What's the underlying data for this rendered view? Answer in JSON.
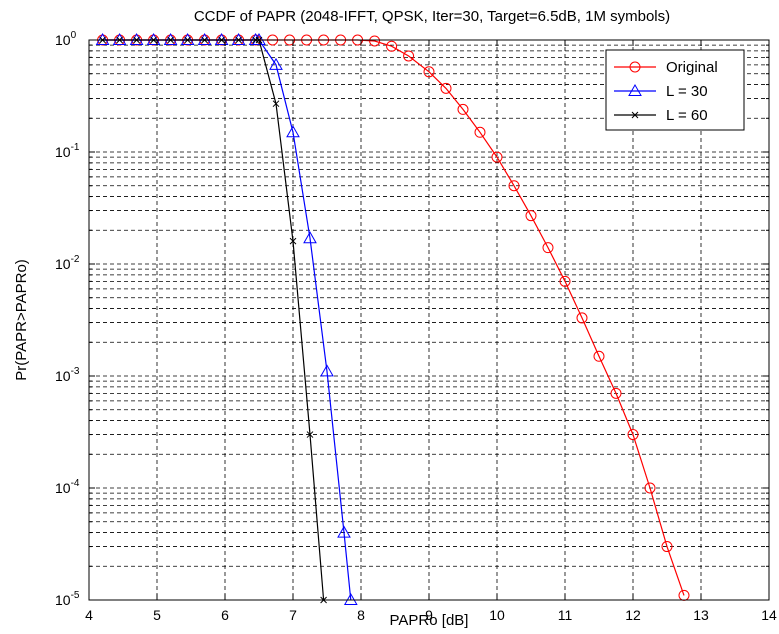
{
  "chart_data": {
    "type": "line",
    "title": "CCDF of PAPR (2048-IFFT, QPSK, Iter=30, Target=6.5dB, 1M symbols)",
    "xlabel": "PAPRo [dB]",
    "ylabel": "Pr(PAPR>PAPRo)",
    "xlim": [
      4,
      14
    ],
    "ylim": [
      1e-05,
      1
    ],
    "yscale": "log",
    "grid": true,
    "x_ticks": [
      "4",
      "5",
      "6",
      "7",
      "8",
      "9",
      "10",
      "11",
      "12",
      "13",
      "14"
    ],
    "y_ticks": [
      {
        "base": "10",
        "exp": "-5"
      },
      {
        "base": "10",
        "exp": "-4"
      },
      {
        "base": "10",
        "exp": "-3"
      },
      {
        "base": "10",
        "exp": "-2"
      },
      {
        "base": "10",
        "exp": "-1"
      },
      {
        "base": "10",
        "exp": "0"
      }
    ],
    "legend_position": "top-right",
    "series": [
      {
        "name": "Original",
        "color": "#ff0000",
        "marker": "circle",
        "x": [
          4.2,
          4.45,
          4.7,
          4.95,
          5.2,
          5.45,
          5.7,
          5.95,
          6.2,
          6.45,
          6.7,
          6.95,
          7.2,
          7.45,
          7.7,
          7.95,
          8.2,
          8.45,
          8.7,
          9.0,
          9.25,
          9.5,
          9.75,
          10.0,
          10.25,
          10.5,
          10.75,
          11.0,
          11.25,
          11.5,
          11.75,
          12.0,
          12.25,
          12.5,
          12.75
        ],
        "y": [
          1,
          1,
          1,
          1,
          1,
          1,
          1,
          1,
          1,
          1,
          1,
          1,
          1,
          1,
          1,
          1,
          0.98,
          0.88,
          0.72,
          0.52,
          0.37,
          0.24,
          0.15,
          0.09,
          0.05,
          0.027,
          0.014,
          0.007,
          0.0033,
          0.0015,
          0.0007,
          0.0003,
          0.0001,
          3e-05,
          1.1e-05
        ]
      },
      {
        "name": "L = 30",
        "color": "#0000ff",
        "marker": "triangle",
        "x": [
          4.2,
          4.45,
          4.7,
          4.95,
          5.2,
          5.45,
          5.7,
          5.95,
          6.2,
          6.45,
          6.5,
          6.75,
          7.0,
          7.25,
          7.5,
          7.75,
          7.85
        ],
        "y": [
          1,
          1,
          1,
          1,
          1,
          1,
          1,
          1,
          1,
          1,
          1,
          0.6,
          0.15,
          0.017,
          0.0011,
          4e-05,
          1e-05
        ]
      },
      {
        "name": "L = 60",
        "color": "#000000",
        "marker": "x",
        "x": [
          4.2,
          4.45,
          4.7,
          4.95,
          5.2,
          5.45,
          5.7,
          5.95,
          6.2,
          6.45,
          6.5,
          6.75,
          7.0,
          7.25,
          7.45
        ],
        "y": [
          1,
          1,
          1,
          1,
          1,
          1,
          1,
          1,
          1,
          1,
          1,
          0.27,
          0.016,
          0.0003,
          1e-05
        ]
      }
    ]
  }
}
